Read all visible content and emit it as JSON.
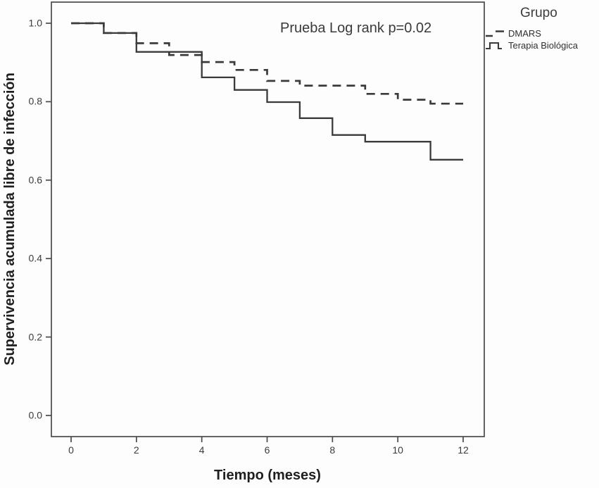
{
  "chart_data": {
    "type": "line",
    "subtype": "kaplan-meier-step",
    "annotation": "Prueba Log rank p=0.02",
    "xlabel": "Tiempo (meses)",
    "ylabel": "Supervivencia acumulada libre de infección",
    "xlim": [
      0,
      12
    ],
    "ylim": [
      0.0,
      1.0
    ],
    "xticks": [
      0,
      2,
      4,
      6,
      8,
      10,
      12
    ],
    "yticks": [
      0.0,
      0.2,
      0.4,
      0.6,
      0.8,
      1.0
    ],
    "grid": false,
    "legend": {
      "title": "Grupo",
      "position": "outside-top-right",
      "items": [
        {
          "label": "DMARS",
          "line_style": "dashed"
        },
        {
          "label": "Terapia Biológica",
          "line_style": "solid"
        }
      ]
    },
    "series": [
      {
        "name": "DMARS",
        "line_style": "dashed",
        "steps": [
          [
            0,
            1.0
          ],
          [
            1,
            0.975
          ],
          [
            2,
            0.949
          ],
          [
            3,
            0.919
          ],
          [
            4,
            0.901
          ],
          [
            5,
            0.881
          ],
          [
            6,
            0.853
          ],
          [
            7,
            0.841
          ],
          [
            9,
            0.82
          ],
          [
            10,
            0.805
          ],
          [
            11,
            0.795
          ]
        ],
        "end_x": 12,
        "end_y": 0.795
      },
      {
        "name": "Terapia Biológica",
        "line_style": "solid",
        "steps": [
          [
            0,
            1.0
          ],
          [
            1,
            0.975
          ],
          [
            2,
            0.927
          ],
          [
            4,
            0.862
          ],
          [
            5,
            0.83
          ],
          [
            6,
            0.799
          ],
          [
            7,
            0.758
          ],
          [
            8,
            0.715
          ],
          [
            9,
            0.698
          ],
          [
            11,
            0.652
          ]
        ],
        "end_x": 12,
        "end_y": 0.652
      }
    ],
    "colors": {
      "line": "#3a3a3a",
      "frame": "#4a4a4a",
      "text": "#333333",
      "background": "#fdfdfd"
    }
  }
}
